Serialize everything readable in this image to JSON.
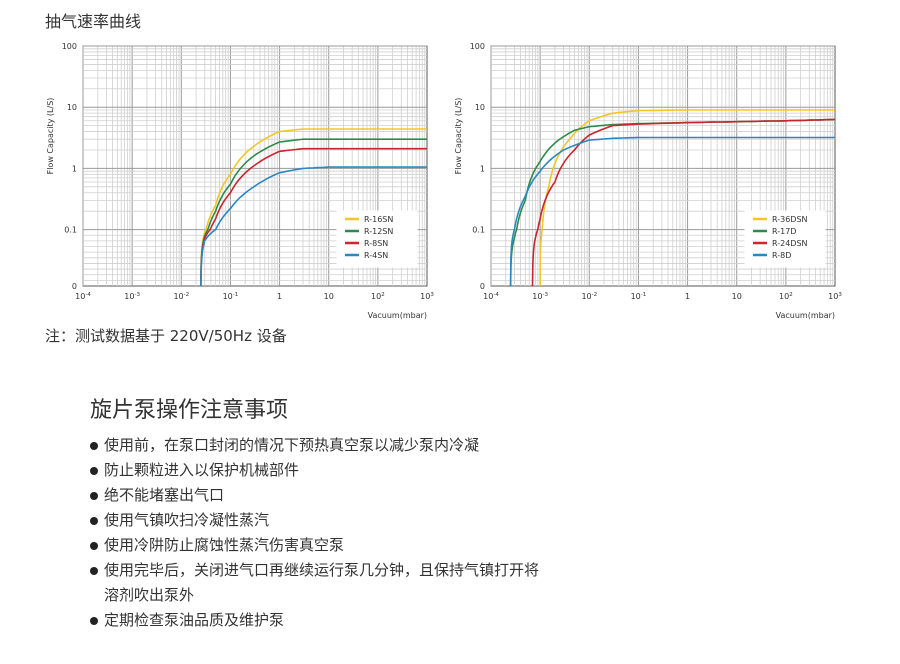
{
  "header": {
    "title": "抽气速率曲线"
  },
  "note": "注：测试数据基于 220V/50Hz 设备",
  "cautions": {
    "title": "旋片泵操作注意事项",
    "items": [
      "使用前，在泵口封闭的情况下预热真空泵以减少泵内冷凝",
      "防止颗粒进入以保护机械部件",
      "绝不能堵塞出气口",
      "使用气镇吹扫冷凝性蒸汽",
      "使用冷阱防止腐蚀性蒸汽伤害真空泵",
      "使用完毕后，关闭进气口再继续运行泵几分钟，且保持气镇打开将溶剂吹出泵外",
      "定期检查泵油品质及维护泵"
    ]
  },
  "chart_data": [
    {
      "type": "line",
      "xlabel": "Vacuum(mbar)",
      "ylabel": "Flow Capacity (L/S)",
      "x_scale": "log",
      "y_scale": "log",
      "xlim": [
        0.0001,
        1000
      ],
      "ylim": [
        0,
        100
      ],
      "x_ticks": [
        "10-4",
        "10-3",
        "10-2",
        "10-1",
        "1",
        "10",
        "102",
        "103"
      ],
      "y_ticks": [
        "0",
        "0.1",
        "1",
        "10",
        "100"
      ],
      "grid": true,
      "legend_position": "bottom-right",
      "series": [
        {
          "name": "R-16SN",
          "color": "#f2c62a",
          "x": [
            0.025,
            0.03,
            0.05,
            0.1,
            0.3,
            1,
            3,
            10,
            100,
            1000
          ],
          "y": [
            0,
            0.08,
            0.25,
            0.8,
            2.3,
            4.0,
            4.4,
            4.4,
            4.4,
            4.4
          ]
        },
        {
          "name": "R-12SN",
          "color": "#2e8a4a",
          "x": [
            0.025,
            0.03,
            0.05,
            0.1,
            0.3,
            1,
            3,
            10,
            100,
            1000
          ],
          "y": [
            0,
            0.06,
            0.2,
            0.55,
            1.6,
            2.7,
            3.0,
            3.0,
            3.0,
            3.0
          ]
        },
        {
          "name": "R-8SN",
          "color": "#c8252c",
          "x": [
            0.025,
            0.03,
            0.05,
            0.1,
            0.3,
            1,
            3,
            10,
            100,
            1000
          ],
          "y": [
            0,
            0.05,
            0.15,
            0.4,
            1.1,
            1.9,
            2.1,
            2.1,
            2.1,
            2.1
          ]
        },
        {
          "name": "R-4SN",
          "color": "#2a88c0",
          "x": [
            0.025,
            0.03,
            0.05,
            0.1,
            0.3,
            1,
            3,
            10,
            100,
            1000
          ],
          "y": [
            0,
            0.04,
            0.1,
            0.22,
            0.5,
            0.85,
            1.0,
            1.05,
            1.05,
            1.05
          ]
        }
      ]
    },
    {
      "type": "line",
      "xlabel": "Vacuum(mbar)",
      "ylabel": "Flow Capacity (L/S)",
      "x_scale": "log",
      "y_scale": "log",
      "xlim": [
        0.0001,
        1000
      ],
      "ylim": [
        0,
        100
      ],
      "x_ticks": [
        "10-4",
        "10-3",
        "10-2",
        "10-1",
        "1",
        "10",
        "102",
        "103"
      ],
      "y_ticks": [
        "0",
        "0.1",
        "1",
        "10",
        "100"
      ],
      "grid": true,
      "legend_position": "bottom-right",
      "series": [
        {
          "name": "R-36DSN",
          "color": "#f2c62a",
          "x": [
            0.001,
            0.0011,
            0.0015,
            0.002,
            0.004,
            0.01,
            0.03,
            0.1,
            1,
            10,
            100,
            1000
          ],
          "y": [
            0,
            0.1,
            0.5,
            1.2,
            3.0,
            6.0,
            8.0,
            8.8,
            9.0,
            9.0,
            9.0,
            9.0
          ]
        },
        {
          "name": "R-17D",
          "color": "#2e8a4a",
          "x": [
            0.00025,
            0.0003,
            0.0005,
            0.001,
            0.002,
            0.005,
            0.01,
            0.03,
            0.1,
            1,
            10,
            100,
            1000
          ],
          "y": [
            0,
            0.05,
            0.3,
            1.3,
            2.6,
            4.2,
            4.8,
            5.2,
            5.4,
            5.6,
            5.8,
            6.0,
            6.3
          ]
        },
        {
          "name": "R-24DSN",
          "color": "#c8252c",
          "x": [
            0.0007,
            0.0008,
            0.001,
            0.002,
            0.005,
            0.01,
            0.03,
            0.1,
            1,
            10,
            100,
            1000
          ],
          "y": [
            0,
            0.05,
            0.15,
            0.6,
            2.0,
            3.5,
            5.0,
            5.3,
            5.6,
            5.8,
            6.0,
            6.3
          ]
        },
        {
          "name": "R-8D",
          "color": "#2a88c0",
          "x": [
            0.00025,
            0.0003,
            0.0005,
            0.001,
            0.003,
            0.01,
            0.03,
            0.1,
            1,
            10,
            100,
            1000
          ],
          "y": [
            0,
            0.1,
            0.35,
            0.9,
            2.0,
            2.9,
            3.1,
            3.2,
            3.2,
            3.2,
            3.2,
            3.2
          ]
        }
      ]
    }
  ]
}
